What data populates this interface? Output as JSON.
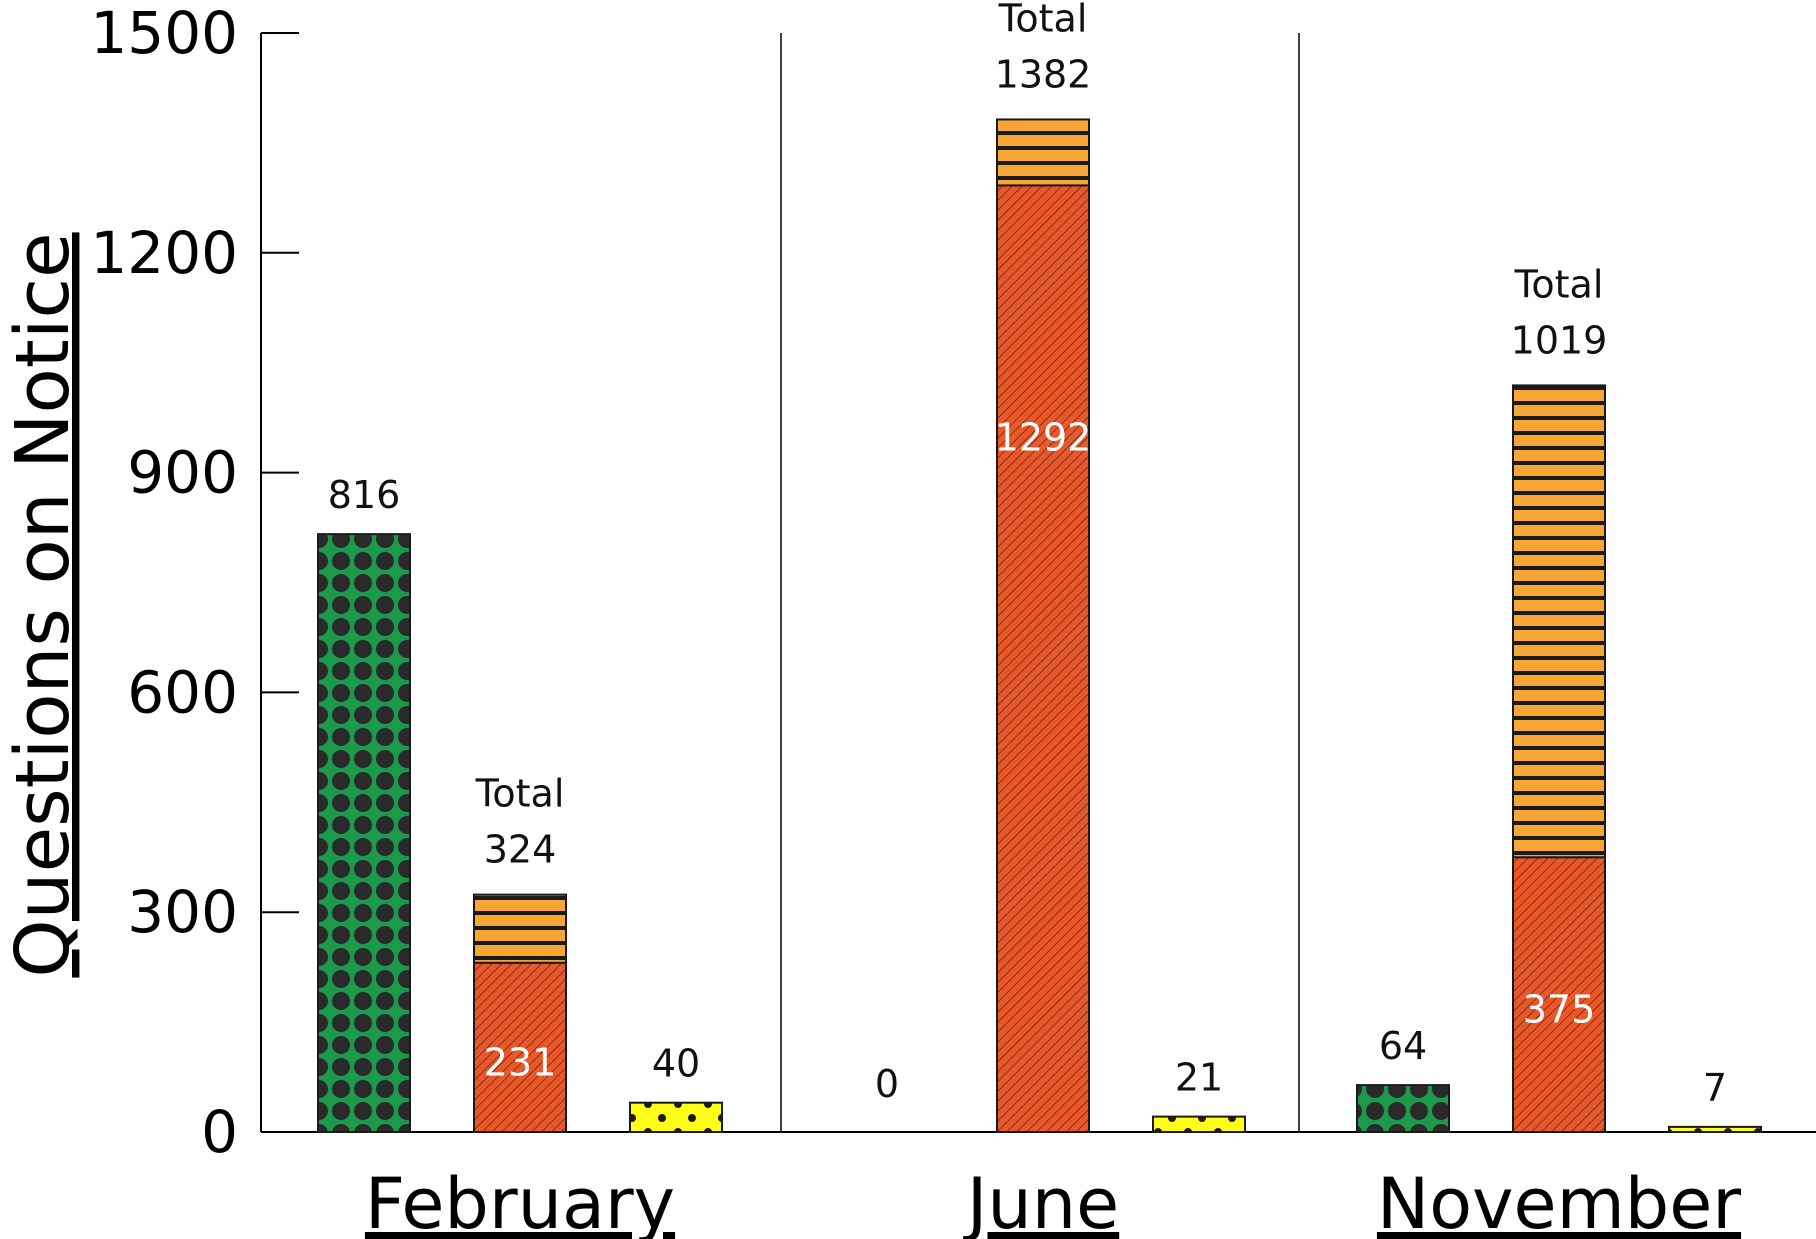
{
  "chart_data": {
    "type": "bar",
    "ylabel": "Questions on Notice",
    "ylim": [
      0,
      1500
    ],
    "yticks": [
      0,
      300,
      600,
      900,
      1200,
      1500
    ],
    "ytick_labels": [
      "0",
      "300",
      "600",
      "900",
      "1200",
      "1500"
    ],
    "categories": [
      "February",
      "June",
      "November"
    ],
    "total_label": "Total",
    "colors": {
      "green": "#1a9a4a",
      "dots_dark": "#2a2a2a",
      "red": "#e8582a",
      "orange": "#f7a534",
      "yellow": "#ffff1a"
    },
    "groups": [
      {
        "category": "February",
        "bars": [
          {
            "style": "green-dots",
            "segments": [
              816
            ],
            "label": "816"
          },
          {
            "style": "red-orange",
            "segments": [
              231,
              93
            ],
            "inner_label": "231",
            "total": "324"
          },
          {
            "style": "yellow-dots",
            "segments": [
              40
            ],
            "label": "40"
          }
        ]
      },
      {
        "category": "June",
        "bars": [
          {
            "style": "green-dots",
            "segments": [
              0
            ],
            "label": "0"
          },
          {
            "style": "red-orange",
            "segments": [
              1292,
              90
            ],
            "inner_label": "1292",
            "total": "1382"
          },
          {
            "style": "yellow-dots",
            "segments": [
              21
            ],
            "label": "21"
          }
        ]
      },
      {
        "category": "November",
        "bars": [
          {
            "style": "green-dots",
            "segments": [
              64
            ],
            "label": "64"
          },
          {
            "style": "red-orange",
            "segments": [
              375,
              644
            ],
            "inner_label": "375",
            "total": "1019"
          },
          {
            "style": "yellow-dots",
            "segments": [
              7
            ],
            "label": "7"
          }
        ]
      }
    ]
  }
}
